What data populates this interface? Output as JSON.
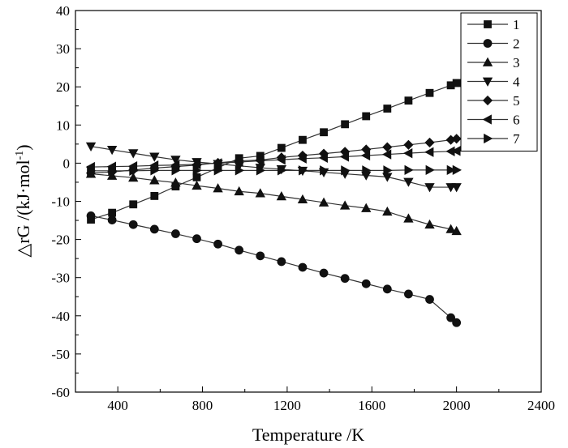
{
  "chart_data": {
    "type": "line",
    "xlabel": "Temperature /K",
    "ylabel": "△rG /(kJ·mol",
    "ylabel_superscript": "-1",
    "ylabel_suffix": ")",
    "xlim": [
      200,
      2400
    ],
    "ylim": [
      -60,
      40
    ],
    "xticks": [
      400,
      800,
      1200,
      1600,
      2000,
      2400
    ],
    "yticks": [
      -60,
      -50,
      -40,
      -30,
      -20,
      -10,
      0,
      10,
      20,
      30,
      40
    ],
    "legend_position": "top-right",
    "grid": false,
    "x": [
      273,
      373,
      473,
      573,
      673,
      773,
      873,
      973,
      1073,
      1173,
      1273,
      1373,
      1473,
      1573,
      1673,
      1773,
      1873,
      1973,
      2000
    ],
    "series": [
      {
        "name": "1",
        "marker": "square",
        "values": [
          -14.8,
          -13.0,
          -10.8,
          -8.6,
          -6.1,
          -3.7,
          -1.2,
          1.3,
          1.9,
          4.0,
          6.1,
          8.1,
          10.2,
          12.3,
          14.3,
          16.4,
          18.4,
          20.4,
          21.0
        ]
      },
      {
        "name": "2",
        "marker": "circle",
        "values": [
          -13.8,
          -14.9,
          -16.1,
          -17.3,
          -18.5,
          -19.8,
          -21.2,
          -22.8,
          -24.3,
          -25.8,
          -27.3,
          -28.8,
          -30.2,
          -31.6,
          -33.0,
          -34.3,
          -35.7,
          -40.5,
          -41.8
        ]
      },
      {
        "name": "3",
        "marker": "triangle-up",
        "values": [
          -2.8,
          -3.3,
          -3.8,
          -4.5,
          -5.1,
          -5.9,
          -6.6,
          -7.4,
          -7.9,
          -8.7,
          -9.5,
          -10.3,
          -11.1,
          -11.8,
          -12.7,
          -14.5,
          -16.1,
          -17.3,
          -17.8
        ]
      },
      {
        "name": "4",
        "marker": "triangle-down",
        "values": [
          4.4,
          3.5,
          2.6,
          1.7,
          0.9,
          0.3,
          -0.2,
          -0.7,
          -1.2,
          -1.6,
          -2.0,
          -2.4,
          -2.8,
          -3.2,
          -3.6,
          -4.9,
          -6.3,
          -6.3,
          -6.3
        ]
      },
      {
        "name": "5",
        "marker": "diamond",
        "values": [
          -2.6,
          -2.3,
          -1.8,
          -1.3,
          -0.9,
          -0.5,
          0.1,
          0.6,
          0.8,
          1.5,
          2.0,
          2.5,
          3.0,
          3.6,
          4.2,
          4.8,
          5.4,
          6.1,
          6.4
        ]
      },
      {
        "name": "6",
        "marker": "triangle-left",
        "values": [
          -1.0,
          -0.9,
          -0.8,
          -0.6,
          -0.5,
          -0.3,
          0.0,
          0.3,
          0.6,
          0.9,
          1.2,
          1.4,
          1.7,
          2.0,
          2.3,
          2.6,
          2.9,
          3.1,
          3.2
        ]
      },
      {
        "name": "7",
        "marker": "triangle-right",
        "values": [
          -2.0,
          -2.0,
          -2.0,
          -1.9,
          -1.9,
          -1.9,
          -1.9,
          -1.9,
          -1.9,
          -1.9,
          -1.9,
          -1.9,
          -1.9,
          -1.9,
          -1.9,
          -1.8,
          -1.8,
          -1.8,
          -1.8
        ]
      }
    ]
  }
}
